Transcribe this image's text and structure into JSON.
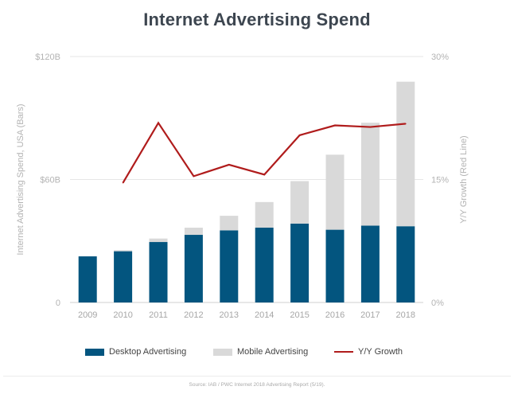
{
  "chart_data": {
    "type": "bar",
    "title": "Internet Advertising Spend",
    "categories": [
      "2009",
      "2010",
      "2011",
      "2012",
      "2013",
      "2014",
      "2015",
      "2016",
      "2017",
      "2018"
    ],
    "series": [
      {
        "name": "Desktop Advertising",
        "kind": "stacked-bar",
        "axis": "left",
        "color": "#03557f",
        "values": [
          22.5,
          25.0,
          29.5,
          33.0,
          35.2,
          36.5,
          38.5,
          35.5,
          37.5,
          37.2
        ]
      },
      {
        "name": "Mobile Advertising",
        "kind": "stacked-bar",
        "axis": "left",
        "color": "#d9d9d9",
        "values": [
          0,
          0.5,
          1.7,
          3.5,
          7.1,
          12.5,
          20.7,
          36.6,
          50.2,
          70.5
        ]
      },
      {
        "name": "Y/Y Growth",
        "kind": "line",
        "axis": "right",
        "color": "#b01c1c",
        "values": [
          null,
          14.6,
          21.9,
          15.4,
          16.8,
          15.6,
          20.4,
          21.6,
          21.4,
          21.8
        ]
      }
    ],
    "y_left": {
      "label": "Internet Advertising Spend, USA (Bars)",
      "ylim": [
        0,
        120
      ],
      "ticks": [
        0,
        60,
        120
      ],
      "tick_labels": [
        "0",
        "$60B",
        "$120B"
      ]
    },
    "y_right": {
      "label": "Y/Y Growth (Red Line)",
      "ylim": [
        0,
        30
      ],
      "ticks": [
        0,
        15,
        30
      ],
      "tick_labels": [
        "0%",
        "15%",
        "30%"
      ]
    },
    "grid": true,
    "legend_position": "bottom",
    "source": "Source: IAB / PWC Internet 2018 Advertising Report (5/19)."
  }
}
